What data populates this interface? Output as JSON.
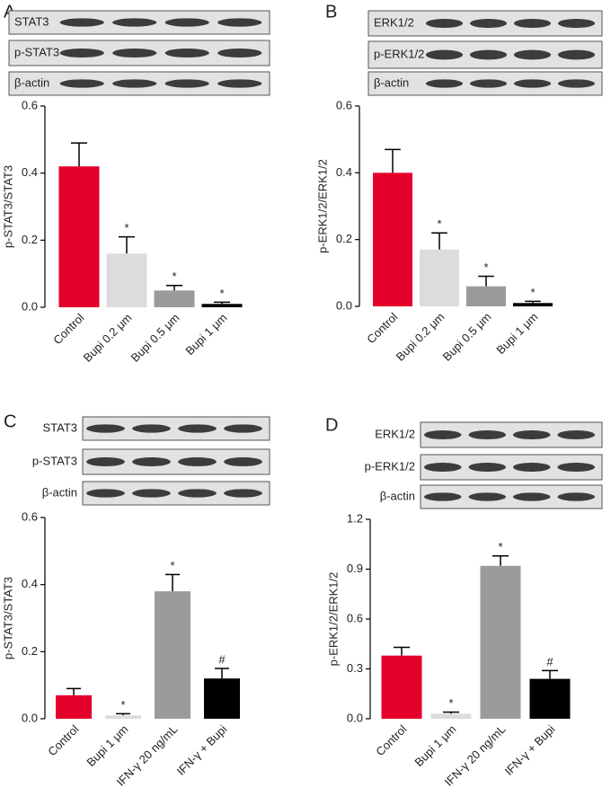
{
  "chart_data": [
    {
      "type": "bar",
      "panel": "A",
      "blot_labels": [
        "STAT3",
        "p-STAT3",
        "β-actin"
      ],
      "y_label": "p-STAT3/STAT3",
      "categories": [
        "Control",
        "Bupi 0.2 μm",
        "Bupi 0.5 μm",
        "Bupi 1 μm"
      ],
      "values": [
        0.42,
        0.16,
        0.05,
        0.01
      ],
      "errors": [
        0.07,
        0.05,
        0.015,
        0.005
      ],
      "bar_labels": [
        null,
        "*",
        "*",
        "*"
      ],
      "colors": [
        "#e4002b",
        "#dcdcdc",
        "#9b9b9b",
        "#000000"
      ],
      "ylim": [
        0,
        0.6
      ],
      "yticks": [
        {
          "value": 0,
          "label": "0.0"
        },
        0.2,
        0.4,
        0.6
      ]
    },
    {
      "type": "bar",
      "panel": "B",
      "blot_labels": [
        "ERK1/2",
        "p-ERK1/2",
        "β-actin"
      ],
      "y_label": "p-ERK1/2/ERK1/2",
      "categories": [
        "Control",
        "Bupi 0.2 μm",
        "Bupi 0.5 μm",
        "Bupi 1 μm"
      ],
      "values": [
        0.4,
        0.17,
        0.06,
        0.01
      ],
      "errors": [
        0.07,
        0.05,
        0.03,
        0.005
      ],
      "bar_labels": [
        null,
        "*",
        "*",
        "*"
      ],
      "colors": [
        "#e4002b",
        "#dcdcdc",
        "#9b9b9b",
        "#000000"
      ],
      "ylim": [
        0,
        0.6
      ],
      "yticks": [
        {
          "value": 0,
          "label": "0.0"
        },
        0.2,
        0.4,
        0.6
      ]
    },
    {
      "type": "bar",
      "panel": "C",
      "blot_labels": [
        "STAT3",
        "p-STAT3",
        "β-actin"
      ],
      "y_label": "p-STAT3/STAT3",
      "categories": [
        "Control",
        "Bupi 1 μm",
        "IFN-γ 20 ng/mL",
        "IFN-γ + Bupi"
      ],
      "values": [
        0.07,
        0.01,
        0.38,
        0.12
      ],
      "errors": [
        0.02,
        0.005,
        0.05,
        0.03
      ],
      "bar_labels": [
        null,
        "*",
        "*",
        "#"
      ],
      "colors": [
        "#e4002b",
        "#dcdcdc",
        "#9b9b9b",
        "#000000"
      ],
      "ylim": [
        0,
        0.6
      ],
      "yticks": [
        {
          "value": 0,
          "label": "0.0"
        },
        0.2,
        0.4,
        0.6
      ]
    },
    {
      "type": "bar",
      "panel": "D",
      "blot_labels": [
        "ERK1/2",
        "p-ERK1/2",
        "β-actin"
      ],
      "y_label": "p-ERK1/2/ERK1/2",
      "categories": [
        "Control",
        "Bupi 1 μm",
        "IFN-γ 20 ng/mL",
        "IFN-γ + Bupi"
      ],
      "values": [
        0.38,
        0.03,
        0.92,
        0.24
      ],
      "errors": [
        0.05,
        0.01,
        0.06,
        0.05
      ],
      "bar_labels": [
        null,
        "*",
        "*",
        "#"
      ],
      "colors": [
        "#e4002b",
        "#dcdcdc",
        "#9b9b9b",
        "#000000"
      ],
      "ylim": [
        0,
        1.2
      ],
      "yticks": [
        {
          "value": 0,
          "label": "0.0"
        },
        0.3,
        0.6,
        0.9,
        1.2
      ]
    }
  ]
}
